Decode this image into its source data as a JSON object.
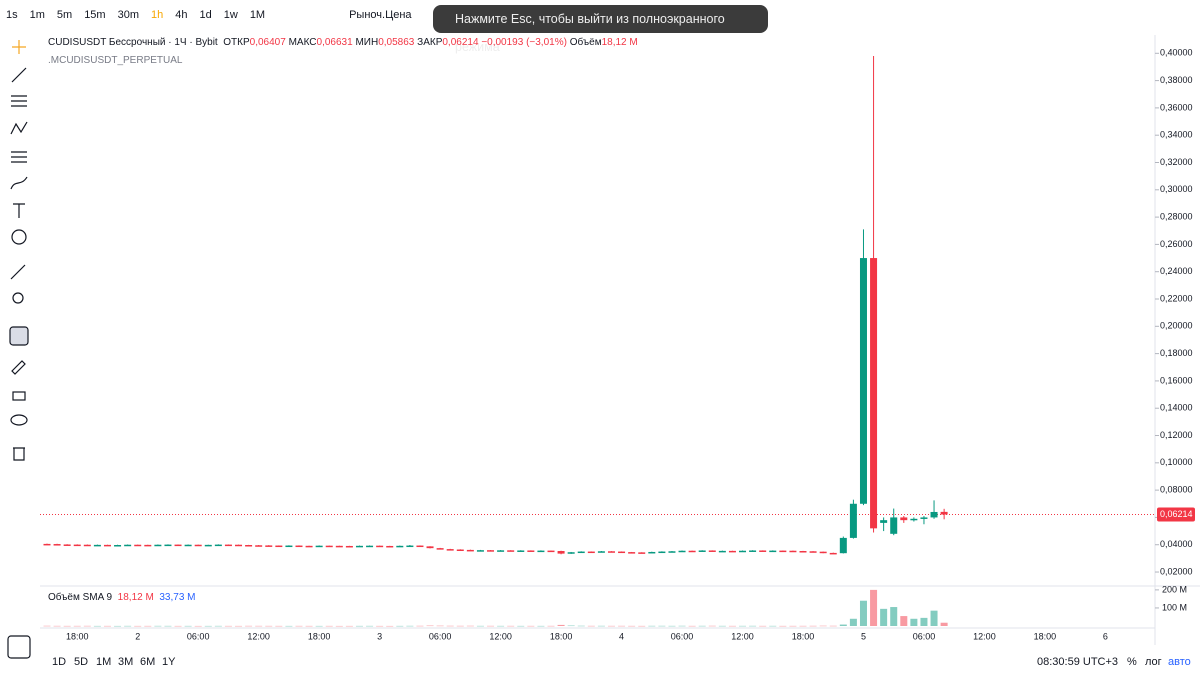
{
  "toolbar": {
    "intervals": [
      "1s",
      "1m",
      "5m",
      "15m",
      "30m",
      "1h",
      "4h",
      "1d",
      "1w",
      "1M"
    ],
    "active_interval": 5,
    "price_type": "Рыноч.Цена"
  },
  "fullscreen_notice": "Нажмите Esc, чтобы выйти из полноэкранного режима",
  "legend": {
    "symbol": "CUDISUSDT Бессрочный · 1Ч · Bybit",
    "open_label": "ОТКР",
    "open": "0,06407",
    "high_label": "МАКС",
    "high": "0,06631",
    "low_label": "МИН",
    "low": "0,05863",
    "close_label": "ЗАКР",
    "close": "0,06214",
    "change": "−0,00193 (−3,01%)",
    "volume_label": "Объём",
    "volume": "18,12 M",
    "index_symbol": ".MCUDISUSDT_PERPETUAL"
  },
  "volume_legend": {
    "title": "Объём SMA 9",
    "volume": "18,12 M",
    "sma": "33,73 M"
  },
  "bottom_bar": {
    "ranges": [
      "1D",
      "5D",
      "1M",
      "3M",
      "6M",
      "1Y"
    ],
    "clock": "08:30:59 UTC+3",
    "percent": "%",
    "log": "лог",
    "auto": "авто"
  },
  "chart_data": {
    "type": "candlestick",
    "up_color": "#089981",
    "down_color": "#f23645",
    "ylim": [
      0.0105,
      0.4134
    ],
    "yticks": [
      {
        "value": 0.02,
        "label": "0,02000"
      },
      {
        "value": 0.04,
        "label": "0,04000"
      },
      {
        "value": 0.06,
        "label": "0,06000"
      },
      {
        "value": 0.08,
        "label": "0,08000"
      },
      {
        "value": 0.1,
        "label": "0,10000"
      },
      {
        "value": 0.12,
        "label": "0,12000"
      },
      {
        "value": 0.14,
        "label": "0,14000"
      },
      {
        "value": 0.16,
        "label": "0,16000"
      },
      {
        "value": 0.18,
        "label": "0,18000"
      },
      {
        "value": 0.2,
        "label": "0,20000"
      },
      {
        "value": 0.22,
        "label": "0,22000"
      },
      {
        "value": 0.24,
        "label": "0,24000"
      },
      {
        "value": 0.26,
        "label": "0,26000"
      },
      {
        "value": 0.28,
        "label": "0,28000"
      },
      {
        "value": 0.3,
        "label": "0,30000"
      },
      {
        "value": 0.32,
        "label": "0,32000"
      },
      {
        "value": 0.34,
        "label": "0,34000"
      },
      {
        "value": 0.36,
        "label": "0,36000"
      },
      {
        "value": 0.38,
        "label": "0,38000"
      },
      {
        "value": 0.4,
        "label": "0,40000"
      }
    ],
    "last_price": {
      "value": 0.06214,
      "label": "0,06214"
    },
    "time_labels": [
      "18:00",
      "2",
      "06:00",
      "12:00",
      "18:00",
      "3",
      "06:00",
      "12:00",
      "18:00",
      "4",
      "06:00",
      "12:00",
      "18:00",
      "5",
      "06:00",
      "12:00",
      "18:00",
      "6"
    ],
    "ohlc": [
      [
        0.0406,
        0.0408,
        0.0403,
        0.0405
      ],
      [
        0.0405,
        0.0407,
        0.04,
        0.0402
      ],
      [
        0.0402,
        0.0404,
        0.0399,
        0.0401
      ],
      [
        0.0401,
        0.0403,
        0.0398,
        0.04
      ],
      [
        0.04,
        0.0402,
        0.0396,
        0.0398
      ],
      [
        0.0398,
        0.0401,
        0.0397,
        0.0399
      ],
      [
        0.0399,
        0.04,
        0.0395,
        0.0397
      ],
      [
        0.0397,
        0.04,
        0.0396,
        0.0398
      ],
      [
        0.0398,
        0.0402,
        0.0397,
        0.04
      ],
      [
        0.04,
        0.0401,
        0.0397,
        0.0399
      ],
      [
        0.0399,
        0.04,
        0.0396,
        0.0398
      ],
      [
        0.0398,
        0.0402,
        0.0397,
        0.04
      ],
      [
        0.04,
        0.0403,
        0.0399,
        0.0401
      ],
      [
        0.0401,
        0.0402,
        0.0397,
        0.0399
      ],
      [
        0.0399,
        0.0402,
        0.0398,
        0.04
      ],
      [
        0.04,
        0.0401,
        0.0396,
        0.0398
      ],
      [
        0.0398,
        0.04,
        0.0397,
        0.0399
      ],
      [
        0.0399,
        0.0403,
        0.0398,
        0.0401
      ],
      [
        0.0401,
        0.0402,
        0.0398,
        0.04
      ],
      [
        0.04,
        0.0401,
        0.0396,
        0.0398
      ],
      [
        0.0398,
        0.0399,
        0.0394,
        0.0396
      ],
      [
        0.0396,
        0.0398,
        0.0393,
        0.0395
      ],
      [
        0.0395,
        0.0397,
        0.0392,
        0.0394
      ],
      [
        0.0394,
        0.0395,
        0.0391,
        0.0393
      ],
      [
        0.0393,
        0.0396,
        0.0392,
        0.0394
      ],
      [
        0.0394,
        0.0395,
        0.039,
        0.0392
      ],
      [
        0.0392,
        0.0393,
        0.0389,
        0.0391
      ],
      [
        0.0391,
        0.0395,
        0.039,
        0.0393
      ],
      [
        0.0393,
        0.0394,
        0.039,
        0.0392
      ],
      [
        0.0392,
        0.0393,
        0.0389,
        0.0391
      ],
      [
        0.0391,
        0.0392,
        0.0388,
        0.039
      ],
      [
        0.039,
        0.0394,
        0.0389,
        0.0392
      ],
      [
        0.0392,
        0.0395,
        0.0391,
        0.0393
      ],
      [
        0.0393,
        0.0394,
        0.0389,
        0.0391
      ],
      [
        0.0391,
        0.0392,
        0.0388,
        0.039
      ],
      [
        0.039,
        0.0394,
        0.0389,
        0.0392
      ],
      [
        0.0392,
        0.0398,
        0.0391,
        0.0394
      ],
      [
        0.0394,
        0.0395,
        0.0386,
        0.0388
      ],
      [
        0.0388,
        0.0389,
        0.0373,
        0.0375
      ],
      [
        0.0375,
        0.0377,
        0.0366,
        0.0368
      ],
      [
        0.0368,
        0.037,
        0.0363,
        0.0365
      ],
      [
        0.0365,
        0.0367,
        0.036,
        0.0362
      ],
      [
        0.0362,
        0.0364,
        0.0356,
        0.0358
      ],
      [
        0.0358,
        0.0362,
        0.0357,
        0.036
      ],
      [
        0.036,
        0.0361,
        0.0355,
        0.0357
      ],
      [
        0.0357,
        0.0361,
        0.0356,
        0.0359
      ],
      [
        0.0359,
        0.036,
        0.0354,
        0.0356
      ],
      [
        0.0356,
        0.036,
        0.0355,
        0.0358
      ],
      [
        0.0358,
        0.0359,
        0.0353,
        0.0355
      ],
      [
        0.0355,
        0.0359,
        0.0354,
        0.0357
      ],
      [
        0.0357,
        0.0358,
        0.0352,
        0.0354
      ],
      [
        0.0354,
        0.0356,
        0.033,
        0.0335
      ],
      [
        0.0335,
        0.0347,
        0.0333,
        0.0345
      ],
      [
        0.0345,
        0.0352,
        0.0344,
        0.035
      ],
      [
        0.035,
        0.0351,
        0.0346,
        0.0348
      ],
      [
        0.0348,
        0.0354,
        0.0347,
        0.0352
      ],
      [
        0.0352,
        0.0353,
        0.0348,
        0.035
      ],
      [
        0.035,
        0.0351,
        0.0344,
        0.0346
      ],
      [
        0.0346,
        0.0347,
        0.0342,
        0.0344
      ],
      [
        0.0344,
        0.0345,
        0.0341,
        0.0343
      ],
      [
        0.0343,
        0.0349,
        0.0342,
        0.0347
      ],
      [
        0.0347,
        0.0352,
        0.0346,
        0.035
      ],
      [
        0.035,
        0.0354,
        0.0349,
        0.0352
      ],
      [
        0.0352,
        0.0358,
        0.0351,
        0.0356
      ],
      [
        0.0356,
        0.0357,
        0.0352,
        0.0354
      ],
      [
        0.0354,
        0.036,
        0.0353,
        0.0358
      ],
      [
        0.0358,
        0.0359,
        0.035,
        0.0352
      ],
      [
        0.0352,
        0.0357,
        0.0351,
        0.0355
      ],
      [
        0.0355,
        0.0356,
        0.0351,
        0.0353
      ],
      [
        0.0353,
        0.0358,
        0.0352,
        0.0356
      ],
      [
        0.0356,
        0.036,
        0.0355,
        0.0358
      ],
      [
        0.0358,
        0.0359,
        0.0353,
        0.0355
      ],
      [
        0.0355,
        0.0359,
        0.0354,
        0.0357
      ],
      [
        0.0357,
        0.0358,
        0.0354,
        0.0356
      ],
      [
        0.0356,
        0.0357,
        0.0352,
        0.0354
      ],
      [
        0.0354,
        0.0355,
        0.035,
        0.0352
      ],
      [
        0.0352,
        0.0353,
        0.0347,
        0.0349
      ],
      [
        0.0349,
        0.035,
        0.0338,
        0.034
      ],
      [
        0.034,
        0.0342,
        0.0336,
        0.0338
      ],
      [
        0.0338,
        0.046,
        0.0336,
        0.045
      ],
      [
        0.045,
        0.073,
        0.0445,
        0.07
      ],
      [
        0.07,
        0.271,
        0.069,
        0.25
      ],
      [
        0.25,
        0.398,
        0.049,
        0.052
      ],
      [
        0.056,
        0.06,
        0.05,
        0.058
      ],
      [
        0.048,
        0.0665,
        0.047,
        0.06
      ],
      [
        0.06,
        0.061,
        0.056,
        0.058
      ],
      [
        0.058,
        0.06,
        0.057,
        0.059
      ],
      [
        0.059,
        0.061,
        0.055,
        0.06
      ],
      [
        0.06,
        0.0725,
        0.059,
        0.064
      ],
      [
        0.06407,
        0.06631,
        0.05863,
        0.06214
      ]
    ],
    "volume": [
      1.2,
      0.8,
      0.6,
      0.7,
      0.9,
      0.5,
      0.6,
      0.4,
      0.7,
      0.5,
      0.6,
      0.8,
      0.7,
      0.5,
      0.6,
      0.4,
      0.5,
      0.7,
      0.6,
      0.5,
      0.9,
      0.8,
      0.7,
      0.6,
      0.5,
      0.7,
      0.6,
      0.5,
      0.6,
      0.4,
      0.5,
      0.6,
      0.7,
      0.5,
      0.4,
      0.6,
      0.9,
      1.1,
      2.4,
      1.8,
      1.2,
      1,
      1.3,
      0.8,
      0.9,
      0.7,
      0.8,
      0.6,
      0.7,
      0.6,
      0.8,
      6,
      2.5,
      1.4,
      0.9,
      1,
      0.8,
      0.9,
      0.7,
      0.6,
      0.9,
      1,
      0.8,
      1.1,
      0.7,
      0.9,
      1.2,
      0.8,
      0.7,
      0.8,
      0.9,
      0.7,
      0.8,
      0.6,
      0.7,
      0.8,
      1,
      1.6,
      1.2,
      8,
      40,
      140,
      200,
      95,
      105,
      55,
      40,
      45,
      85,
      18.12
    ],
    "volume_ylim": [
      0,
      216
    ],
    "volume_ticks": [
      {
        "value": 100,
        "label": "100 M"
      },
      {
        "value": 200,
        "label": "200 M"
      }
    ]
  }
}
